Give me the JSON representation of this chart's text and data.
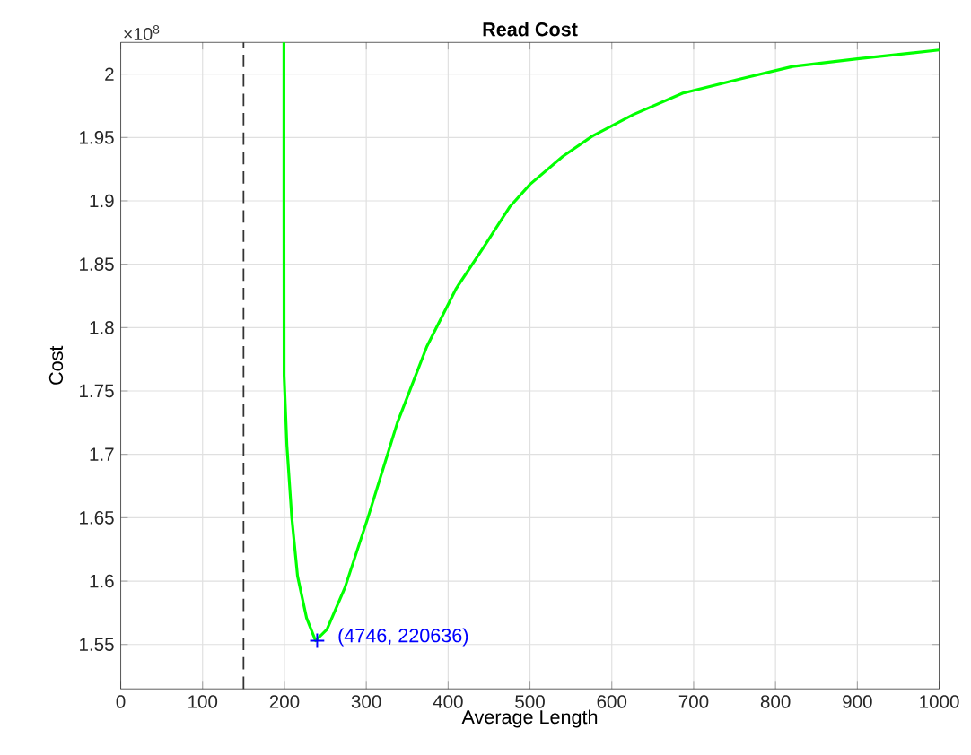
{
  "chart_data": {
    "type": "line",
    "title": "Read Cost",
    "xlabel": "Average Length",
    "ylabel": "Cost",
    "xlim": [
      0,
      1000
    ],
    "xticks": [
      0,
      100,
      200,
      300,
      400,
      500,
      600,
      700,
      800,
      900,
      1000
    ],
    "ylim": [
      1.515,
      2.025
    ],
    "yticks": [
      1.55,
      1.6,
      1.65,
      1.7,
      1.75,
      1.8,
      1.85,
      1.9,
      1.95,
      2
    ],
    "grid": true,
    "series": [
      {
        "color": "#00ff00",
        "marker": "none",
        "x": [
          199.4,
          199.4,
          199.6,
          203,
          209,
          216,
          227,
          238,
          252,
          274,
          302,
          338,
          374,
          410,
          446,
          475,
          500,
          540,
          576,
          626,
          687,
          756,
          821,
          900,
          1000
        ],
        "values": [
          2.025,
          1.9,
          1.762,
          1.707,
          1.65,
          1.604,
          1.571,
          1.553,
          1.562,
          1.595,
          1.65,
          1.725,
          1.785,
          1.831,
          1.866,
          1.895,
          1.913,
          1.935,
          1.951,
          1.968,
          1.985,
          1.996,
          2.006,
          2.012,
          2.019
        ]
      },
      {
        "type": "scatter",
        "color": "#0000ff",
        "marker": "cross",
        "x": [
          240
        ],
        "values": [
          1.553
        ]
      }
    ],
    "ref_lines": [
      {
        "axis": "x",
        "value": 150,
        "color": "#333333",
        "line_style": "dashed"
      }
    ],
    "annotations": [
      "×10$^{8}$",
      {
        "text": "(4746, 220636)",
        "x": 240,
        "y": 1.553
      }
    ]
  }
}
